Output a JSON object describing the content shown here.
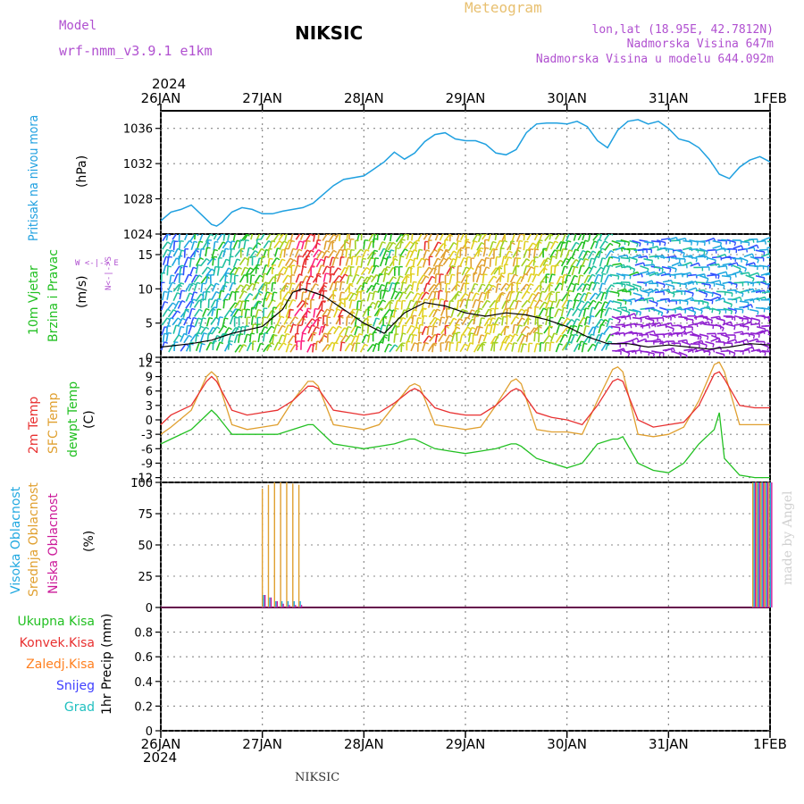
{
  "header": {
    "model_label": "Model",
    "model_name": "wrf-nmm_v3.9.1  e1km",
    "station": "NIKSIC",
    "meteogram": "Meteogram",
    "lonlat": "lon,lat (18.95E, 42.7812N)",
    "altitude": "Nadmorska Visina 647m",
    "model_altitude": "Nadmorska Visina u modelu 644.092m",
    "footer_station": "NIKSIC",
    "credit": "made by Angel"
  },
  "colors": {
    "pressure": "#1fa0e0",
    "temp2m": "#e83030",
    "sfc": "#e0a030",
    "dewpt": "#22c022",
    "high_cloud": "#20a8e0",
    "mid_cloud": "#e0a030",
    "low_cloud": "#cc1a99",
    "model": "#b050d0",
    "meteogram": "#e8c070",
    "credit": "#d0d0d0"
  },
  "time_axis": {
    "year": "2024",
    "labels": [
      "26JAN",
      "27JAN",
      "28JAN",
      "29JAN",
      "30JAN",
      "31JAN",
      "1FEB"
    ]
  },
  "panels": {
    "pressure": {
      "label": "Pritisak na nivou mora",
      "unit": "(hPa)",
      "ticks": [
        "1036",
        "1032",
        "1028",
        "1024"
      ]
    },
    "wind": {
      "label1": "10m Vjetar",
      "label2": "Brzina i Pravac",
      "unit": "(m/s)",
      "compass": "W  <-|->  E",
      "compass_v": "N<-|->S",
      "ticks": [
        "15",
        "10",
        "5",
        "0"
      ]
    },
    "temp": {
      "label1": "2m Temp",
      "label2": "SFC Temp",
      "label3": "dewpt Temp",
      "unit": "(C)",
      "ticks": [
        "12",
        "9",
        "6",
        "3",
        "0",
        "-3",
        "-6",
        "-9",
        "-12"
      ]
    },
    "cloud": {
      "label1": "Visoka Oblacnost",
      "label2": "Srednja Oblacnost",
      "label3": "Niska Oblacnost",
      "unit": "(%)",
      "ticks": [
        "100",
        "75",
        "50",
        "25",
        "0"
      ]
    },
    "precip": {
      "unit": "1hr Precip (mm)",
      "legend": [
        "Ukupna Kisa",
        "Konvek.Kisa",
        "Zaledj.Kisa",
        "Snijeg",
        "Grad"
      ],
      "legend_colors": [
        "#22c022",
        "#e83030",
        "#ff8020",
        "#4040ff",
        "#20c0c0"
      ],
      "ticks": [
        "0.8",
        "0.6",
        "0.4",
        "0.2",
        "0"
      ]
    }
  },
  "chart_data": [
    {
      "type": "line",
      "panel": "pressure",
      "ylim": [
        1024,
        1038
      ],
      "x_days": [
        0,
        0.1,
        0.2,
        0.3,
        0.4,
        0.5,
        0.55,
        0.6,
        0.7,
        0.8,
        0.9,
        1.0,
        1.1,
        1.2,
        1.3,
        1.4,
        1.5,
        1.6,
        1.7,
        1.8,
        1.9,
        2.0,
        2.1,
        2.2,
        2.3,
        2.4,
        2.5,
        2.6,
        2.7,
        2.8,
        2.9,
        3.0,
        3.1,
        3.2,
        3.3,
        3.4,
        3.5,
        3.6,
        3.7,
        3.8,
        3.9,
        4.0,
        4.1,
        4.2,
        4.3,
        4.4,
        4.5,
        4.6,
        4.7,
        4.8,
        4.9,
        5.0,
        5.1,
        5.2,
        5.3,
        5.4,
        5.5,
        5.6,
        5.7,
        5.8,
        5.9,
        6.0
      ],
      "series": [
        {
          "values": [
            1025.5,
            1026.5,
            1026.8,
            1027.3,
            1026.2,
            1025.1,
            1024.9,
            1025.3,
            1026.5,
            1027.0,
            1026.8,
            1026.3,
            1026.3,
            1026.6,
            1026.8,
            1027.0,
            1027.5,
            1028.5,
            1029.5,
            1030.2,
            1030.4,
            1030.6,
            1031.4,
            1032.2,
            1033.3,
            1032.5,
            1033.2,
            1034.5,
            1035.3,
            1035.5,
            1034.8,
            1034.6,
            1034.6,
            1034.2,
            1033.2,
            1033.0,
            1033.6,
            1035.5,
            1036.5,
            1036.6,
            1036.6,
            1036.5,
            1036.8,
            1036.2,
            1034.6,
            1033.8,
            1035.8,
            1036.8,
            1037.0,
            1036.5,
            1036.8,
            1036.0,
            1034.8,
            1034.5,
            1033.8,
            1032.5,
            1030.8,
            1030.3,
            1031.6,
            1032.4,
            1032.8,
            1032.2
          ]
        }
      ]
    },
    {
      "type": "line",
      "panel": "wind",
      "ylim": [
        0,
        18
      ],
      "x_days": [
        0,
        0.3,
        0.5,
        0.7,
        1.0,
        1.2,
        1.3,
        1.4,
        1.6,
        1.8,
        2.0,
        2.2,
        2.4,
        2.6,
        2.8,
        3.0,
        3.2,
        3.4,
        3.6,
        3.8,
        4.0,
        4.2,
        4.4,
        4.6,
        4.8,
        5.0,
        5.2,
        5.4,
        5.6,
        5.8,
        6.0
      ],
      "series": [
        {
          "values": [
            1.5,
            2.0,
            2.5,
            3.5,
            4.5,
            7.0,
            9.5,
            10.0,
            9.0,
            7.0,
            5.0,
            3.5,
            6.5,
            8.0,
            7.5,
            6.5,
            6.0,
            6.5,
            6.2,
            5.5,
            4.5,
            3.0,
            2.0,
            2.0,
            1.5,
            1.8,
            1.5,
            1.2,
            1.5,
            2.0,
            1.8
          ]
        }
      ]
    },
    {
      "type": "line",
      "panel": "temp",
      "ylim": [
        -13,
        13
      ],
      "x_days": [
        0,
        0.1,
        0.3,
        0.45,
        0.5,
        0.55,
        0.7,
        0.85,
        1.0,
        1.15,
        1.3,
        1.45,
        1.5,
        1.55,
        1.7,
        1.85,
        2.0,
        2.15,
        2.3,
        2.45,
        2.5,
        2.55,
        2.7,
        2.85,
        3.0,
        3.15,
        3.3,
        3.45,
        3.5,
        3.55,
        3.7,
        3.85,
        4.0,
        4.15,
        4.3,
        4.45,
        4.5,
        4.55,
        4.7,
        4.85,
        5.0,
        5.15,
        5.3,
        5.45,
        5.5,
        5.55,
        5.7,
        5.85,
        6.0
      ],
      "series": [
        {
          "values": [
            -1,
            1,
            3,
            8,
            9,
            8,
            2,
            1,
            1.5,
            2,
            4,
            7,
            7,
            6.5,
            2,
            1.5,
            1,
            1.5,
            3.5,
            6,
            6.5,
            6,
            2.5,
            1.5,
            1,
            1,
            3,
            6,
            6.5,
            6,
            1.5,
            0.5,
            0,
            -1,
            3,
            8,
            8.5,
            8,
            0,
            -1.5,
            -1,
            -0.5,
            3,
            9.5,
            10,
            8.5,
            3,
            2.5,
            2.5
          ]
        },
        {
          "values": [
            -3,
            -1.5,
            2,
            9,
            10,
            9,
            -1,
            -2,
            -1.5,
            -1,
            4,
            8,
            8,
            7,
            -1,
            -1.5,
            -2,
            -1,
            3,
            7,
            7.5,
            7,
            -1,
            -1.5,
            -2,
            -1.5,
            3,
            8,
            8.5,
            7.5,
            -2,
            -2.5,
            -2.5,
            -3,
            4,
            10.5,
            11,
            10,
            -3,
            -3.5,
            -3,
            -1.5,
            4,
            11.5,
            12,
            10,
            -1,
            -1,
            -1
          ]
        },
        {
          "values": [
            -5,
            -4,
            -2,
            1,
            2,
            1,
            -3,
            -3,
            -3,
            -3,
            -2,
            -1,
            -1,
            -2,
            -5,
            -5.5,
            -6,
            -5.5,
            -5,
            -4,
            -4,
            -4.5,
            -6,
            -6.5,
            -7,
            -6.5,
            -6,
            -5,
            -5,
            -5.5,
            -8,
            -9,
            -10,
            -9,
            -5,
            -4,
            -4,
            -3.5,
            -9,
            -10.5,
            -11,
            -9,
            -5,
            -2,
            1.5,
            -8,
            -11.5,
            -12,
            -12
          ]
        }
      ]
    },
    {
      "type": "bar",
      "panel": "cloud",
      "ylim": [
        0,
        100
      ],
      "bars_days": [
        1.0,
        1.06,
        1.12,
        1.18,
        1.24,
        1.3,
        1.36,
        5.83,
        5.87,
        5.91,
        5.95,
        5.99
      ],
      "series": [
        {
          "name": "Srednja Oblacnost",
          "values": [
            95,
            98,
            100,
            100,
            100,
            99,
            98,
            100,
            100,
            100,
            100,
            100
          ]
        },
        {
          "name": "Visoka Oblacnost",
          "values": [
            10,
            8,
            5,
            5,
            5,
            5,
            5,
            100,
            100,
            100,
            100,
            100
          ]
        },
        {
          "name": "Niska Oblacnost",
          "values": [
            10,
            8,
            5,
            3,
            2,
            2,
            2,
            100,
            100,
            100,
            100,
            100
          ]
        }
      ]
    },
    {
      "type": "bar",
      "panel": "precip",
      "ylim": [
        0,
        1.0
      ],
      "series": [
        {
          "values": []
        }
      ]
    }
  ]
}
